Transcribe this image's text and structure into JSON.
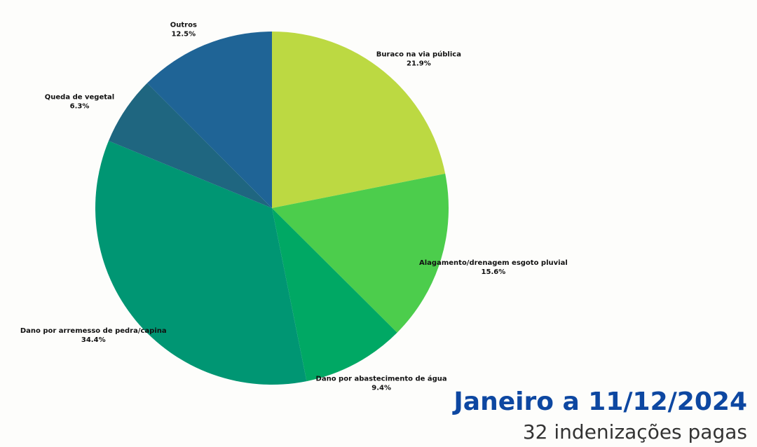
{
  "chart_data": {
    "type": "pie",
    "title": "Janeiro a 11/12/2024",
    "subtitle": "32 indenizações pagas",
    "categories": [
      "Buraco na via pública",
      "Alagamento/drenagem esgoto pluvial",
      "Dano por abastecimento de água",
      "Dano por arremesso de pedra/capina",
      "Queda de vegetal",
      "Outros"
    ],
    "values": [
      21.9,
      15.6,
      9.4,
      34.4,
      6.3,
      12.5
    ],
    "value_labels": [
      "21.9%",
      "15.6%",
      "9.4%",
      "34.4%",
      "6.3%",
      "12.5%"
    ],
    "colors": [
      "#bcd942",
      "#4ccd4c",
      "#00a864",
      "#009673",
      "#1f6680",
      "#1f6496"
    ]
  }
}
